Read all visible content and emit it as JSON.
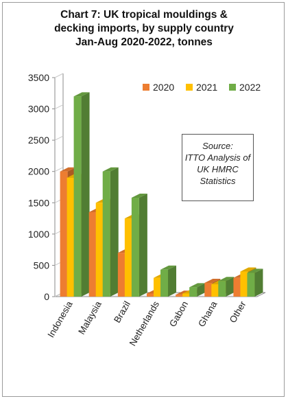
{
  "chart_data": {
    "type": "bar",
    "title": "Chart 7: UK tropical mouldings & decking imports, by supply country Jan-Aug 2020-2022, tonnes",
    "title_lines": [
      "Chart 7: UK tropical mouldings &",
      "decking imports, by supply country",
      "Jan-Aug 2020-2022, tonnes"
    ],
    "categories": [
      "Indonesia",
      "Malaysia",
      "Brazil",
      "Netherlands",
      "Gabon",
      "Ghana",
      "Other"
    ],
    "series": [
      {
        "name": "2020",
        "color": "#ED7D31",
        "values": [
          2000,
          1350,
          700,
          50,
          30,
          220,
          300
        ]
      },
      {
        "name": "2021",
        "color": "#FFC000",
        "values": [
          1900,
          1500,
          1250,
          300,
          50,
          200,
          400
        ]
      },
      {
        "name": "2022",
        "color": "#70AD47",
        "values": [
          3200,
          2000,
          1580,
          430,
          150,
          250,
          380
        ]
      }
    ],
    "y_ticks": [
      "0",
      "500",
      "1000",
      "1500",
      "2000",
      "2500",
      "3000",
      "3500"
    ],
    "ylim": [
      0,
      3500
    ],
    "legend_position": "top-right",
    "grid": false,
    "annotation": [
      "Source:",
      "ITTO Analysis of",
      "UK HMRC",
      "Statistics"
    ]
  }
}
